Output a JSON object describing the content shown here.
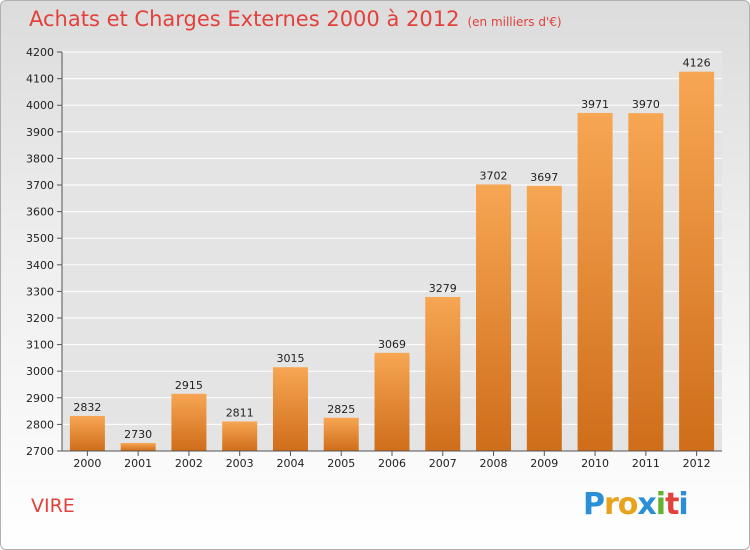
{
  "title": "Achats et Charges Externes 2000 à 2012",
  "unit": "(en milliers d'€)",
  "place": "VIRE",
  "logo": {
    "letters": [
      "P",
      "r",
      "o",
      "x",
      "i",
      "t",
      "i"
    ],
    "colors": [
      "#2a8fd6",
      "#e8a21b",
      "#e8a21b",
      "#2a8fd6",
      "#64b22d",
      "#e2413c",
      "#2a8fd6"
    ]
  },
  "colors": {
    "bar_top": "#f7a653",
    "bar_bottom": "#cf6d1a",
    "title": "#e2413c"
  },
  "chart_data": {
    "type": "bar",
    "title": "Achats et Charges Externes 2000 à 2012",
    "subtitle": "(en milliers d'€)",
    "categories": [
      "2000",
      "2001",
      "2002",
      "2003",
      "2004",
      "2005",
      "2006",
      "2007",
      "2008",
      "2009",
      "2010",
      "2011",
      "2012"
    ],
    "values": [
      2832,
      2730,
      2915,
      2811,
      3015,
      2825,
      3069,
      3279,
      3702,
      3697,
      3971,
      3970,
      4126
    ],
    "ylim": [
      2700,
      4200
    ],
    "yticks": [
      2700,
      2800,
      2900,
      3000,
      3100,
      3200,
      3300,
      3400,
      3500,
      3600,
      3700,
      3800,
      3900,
      4000,
      4100,
      4200
    ],
    "grid": true,
    "data_labels": true
  }
}
